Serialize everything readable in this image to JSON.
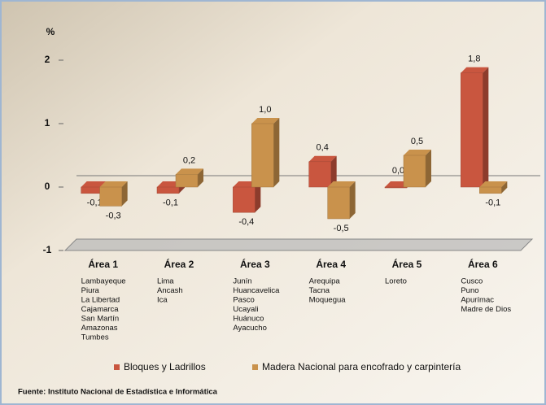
{
  "chart_data": {
    "type": "bar3d",
    "y_axis_label": "%",
    "categories": [
      "Área 1",
      "Área 2",
      "Área 3",
      "Área 4",
      "Área 5",
      "Área 6"
    ],
    "regions": [
      [
        "Lambayeque",
        "Piura",
        "La Libertad",
        "Cajamarca",
        "San Martín",
        "Amazonas",
        "Tumbes"
      ],
      [
        "Lima",
        "Ancash",
        "Ica"
      ],
      [
        "Junín",
        "Huancavelica",
        "Pasco",
        "Ucayali",
        "Huánuco",
        "Ayacucho"
      ],
      [
        "Arequipa",
        "Tacna",
        "Moquegua"
      ],
      [
        "Loreto"
      ],
      [
        "Cusco",
        "Puno",
        "Apurímac",
        "Madre de Dios"
      ]
    ],
    "series": [
      {
        "name": "Bloques y Ladrillos",
        "color": "#c9563f",
        "values": [
          -0.1,
          -0.1,
          -0.4,
          0.4,
          0.0,
          1.8
        ],
        "value_labels": [
          "-0,1",
          "-0,1",
          "-0,4",
          "0,4",
          "0,0",
          "1,8"
        ]
      },
      {
        "name": "Madera Nacional para encofrado y carpintería",
        "color": "#c9924c",
        "values": [
          -0.3,
          0.2,
          1.0,
          -0.5,
          0.5,
          -0.1
        ],
        "value_labels": [
          "-0,3",
          "0,2",
          "1,0",
          "-0,5",
          "0,5",
          "-0,1"
        ]
      }
    ],
    "ylim": [
      -1,
      2
    ],
    "yticks": [
      -1,
      0,
      1,
      2
    ],
    "source": "Fuente: Instituto Nacional de Estadística e Informática"
  }
}
